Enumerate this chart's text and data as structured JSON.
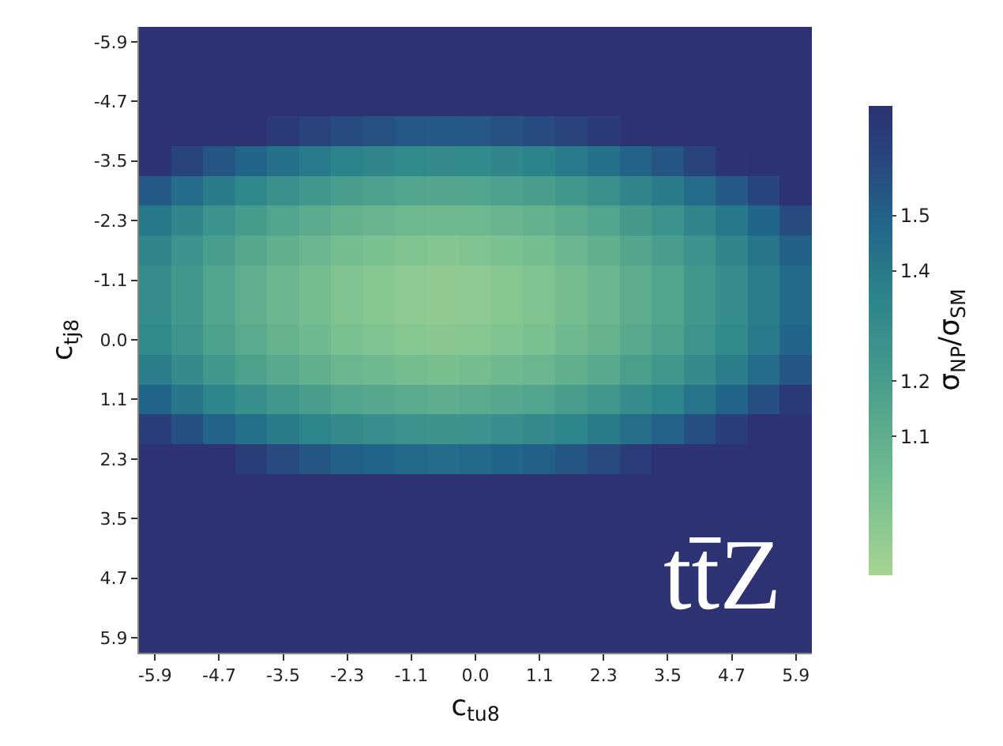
{
  "chart_data": {
    "type": "heatmap",
    "xlabel": "c$_{tu8}$",
    "ylabel": "c$_{tj8}$",
    "clabel": "σ$_{NP}$/σ$_{SM}$",
    "annotations": [
      "tt̄Z"
    ],
    "categories": [
      "-5.9",
      null,
      "-4.7",
      null,
      "-3.5",
      null,
      "-2.3",
      null,
      "-1.1",
      null,
      "0.0",
      null,
      "1.1",
      null,
      "2.3",
      null,
      "3.5",
      null,
      "4.7",
      null,
      "5.9"
    ],
    "y_categories": [
      "-5.9",
      null,
      "-4.7",
      null,
      "-3.5",
      null,
      "-2.3",
      null,
      "-1.1",
      null,
      "0.0",
      null,
      "1.1",
      null,
      "2.3",
      null,
      "3.5",
      null,
      "4.7",
      null,
      "5.9"
    ],
    "clim": [
      0.85,
      1.7
    ],
    "cticks": [
      1.1,
      1.2,
      1.4,
      1.5
    ],
    "cells": [
      [
        1.7,
        1.7,
        1.7,
        1.7,
        1.7,
        1.7,
        1.7,
        1.7,
        1.7,
        1.7,
        1.7,
        1.7,
        1.7,
        1.7,
        1.7,
        1.7,
        1.7,
        1.7,
        1.7,
        1.7,
        1.7
      ],
      [
        1.7,
        1.7,
        1.7,
        1.7,
        1.7,
        1.7,
        1.7,
        1.7,
        1.7,
        1.7,
        1.7,
        1.7,
        1.7,
        1.7,
        1.7,
        1.7,
        1.7,
        1.7,
        1.7,
        1.7,
        1.7
      ],
      [
        1.7,
        1.7,
        1.7,
        1.7,
        1.7,
        1.7,
        1.7,
        1.7,
        1.7,
        1.7,
        1.7,
        1.7,
        1.7,
        1.7,
        1.7,
        1.7,
        1.7,
        1.7,
        1.7,
        1.7,
        1.7
      ],
      [
        1.7,
        1.7,
        1.7,
        1.7,
        1.66,
        1.62,
        1.58,
        1.56,
        1.54,
        1.53,
        1.54,
        1.56,
        1.58,
        1.62,
        1.66,
        1.7,
        1.7,
        1.7,
        1.7,
        1.7,
        1.7
      ],
      [
        1.69,
        1.62,
        1.55,
        1.49,
        1.44,
        1.4,
        1.36,
        1.34,
        1.32,
        1.31,
        1.32,
        1.34,
        1.36,
        1.4,
        1.44,
        1.5,
        1.55,
        1.62,
        1.69,
        1.7,
        1.7
      ],
      [
        1.53,
        1.46,
        1.39,
        1.33,
        1.28,
        1.24,
        1.2,
        1.18,
        1.16,
        1.15,
        1.16,
        1.18,
        1.2,
        1.24,
        1.28,
        1.34,
        1.39,
        1.46,
        1.53,
        1.61,
        1.7
      ],
      [
        1.41,
        1.34,
        1.27,
        1.21,
        1.16,
        1.12,
        1.08,
        1.06,
        1.04,
        1.03,
        1.04,
        1.06,
        1.08,
        1.12,
        1.16,
        1.22,
        1.27,
        1.34,
        1.41,
        1.49,
        1.58
      ],
      [
        1.34,
        1.27,
        1.2,
        1.14,
        1.09,
        1.05,
        1.01,
        0.99,
        0.97,
        0.96,
        0.97,
        0.99,
        1.01,
        1.05,
        1.09,
        1.15,
        1.2,
        1.27,
        1.34,
        1.42,
        1.51
      ],
      [
        1.3,
        1.23,
        1.16,
        1.1,
        1.05,
        1.01,
        0.97,
        0.95,
        0.93,
        0.92,
        0.93,
        0.95,
        0.97,
        1.01,
        1.05,
        1.11,
        1.16,
        1.23,
        1.3,
        1.38,
        1.47
      ],
      [
        1.3,
        1.23,
        1.16,
        1.1,
        1.05,
        1.01,
        0.97,
        0.95,
        0.93,
        0.92,
        0.93,
        0.95,
        0.97,
        1.01,
        1.05,
        1.11,
        1.16,
        1.23,
        1.3,
        1.38,
        1.47
      ],
      [
        1.32,
        1.25,
        1.18,
        1.12,
        1.07,
        1.03,
        0.99,
        0.97,
        0.95,
        0.94,
        0.95,
        0.97,
        0.99,
        1.03,
        1.07,
        1.13,
        1.18,
        1.25,
        1.32,
        1.4,
        1.49
      ],
      [
        1.38,
        1.31,
        1.24,
        1.18,
        1.13,
        1.09,
        1.05,
        1.03,
        1.01,
        1.0,
        1.01,
        1.03,
        1.05,
        1.09,
        1.13,
        1.19,
        1.24,
        1.31,
        1.38,
        1.46,
        1.55
      ],
      [
        1.49,
        1.42,
        1.35,
        1.29,
        1.24,
        1.2,
        1.16,
        1.14,
        1.12,
        1.11,
        1.12,
        1.14,
        1.16,
        1.2,
        1.24,
        1.3,
        1.35,
        1.42,
        1.49,
        1.57,
        1.66
      ],
      [
        1.64,
        1.57,
        1.5,
        1.44,
        1.39,
        1.35,
        1.31,
        1.29,
        1.27,
        1.26,
        1.27,
        1.29,
        1.31,
        1.35,
        1.39,
        1.45,
        1.5,
        1.57,
        1.64,
        1.7,
        1.7
      ],
      [
        1.7,
        1.7,
        1.7,
        1.64,
        1.59,
        1.55,
        1.51,
        1.49,
        1.47,
        1.46,
        1.47,
        1.49,
        1.51,
        1.55,
        1.59,
        1.65,
        1.7,
        1.7,
        1.7,
        1.7,
        1.7
      ],
      [
        1.7,
        1.7,
        1.7,
        1.7,
        1.7,
        1.7,
        1.7,
        1.7,
        1.7,
        1.7,
        1.7,
        1.7,
        1.7,
        1.7,
        1.7,
        1.7,
        1.7,
        1.7,
        1.7,
        1.7,
        1.7
      ],
      [
        1.7,
        1.7,
        1.7,
        1.7,
        1.7,
        1.7,
        1.7,
        1.7,
        1.7,
        1.7,
        1.7,
        1.7,
        1.7,
        1.7,
        1.7,
        1.7,
        1.7,
        1.7,
        1.7,
        1.7,
        1.7
      ],
      [
        1.7,
        1.7,
        1.7,
        1.7,
        1.7,
        1.7,
        1.7,
        1.7,
        1.7,
        1.7,
        1.7,
        1.7,
        1.7,
        1.7,
        1.7,
        1.7,
        1.7,
        1.7,
        1.7,
        1.7,
        1.7
      ],
      [
        1.7,
        1.7,
        1.7,
        1.7,
        1.7,
        1.7,
        1.7,
        1.7,
        1.7,
        1.7,
        1.7,
        1.7,
        1.7,
        1.7,
        1.7,
        1.7,
        1.7,
        1.7,
        1.7,
        1.7,
        1.7
      ],
      [
        1.7,
        1.7,
        1.7,
        1.7,
        1.7,
        1.7,
        1.7,
        1.7,
        1.7,
        1.7,
        1.7,
        1.7,
        1.7,
        1.7,
        1.7,
        1.7,
        1.7,
        1.7,
        1.7,
        1.7,
        1.7
      ],
      [
        1.7,
        1.7,
        1.7,
        1.7,
        1.7,
        1.7,
        1.7,
        1.7,
        1.7,
        1.7,
        1.7,
        1.7,
        1.7,
        1.7,
        1.7,
        1.7,
        1.7,
        1.7,
        1.7,
        1.7,
        1.7
      ]
    ]
  }
}
